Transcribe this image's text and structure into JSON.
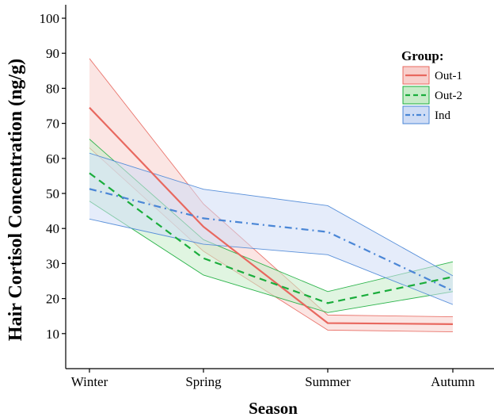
{
  "chart_data": {
    "type": "line",
    "title": "",
    "xlabel": "Season",
    "ylabel": "Hair Cortisol Concentration (ng/g)",
    "categories": [
      "Winter",
      "Spring",
      "Summer",
      "Autumn"
    ],
    "ylim": [
      0,
      100
    ],
    "yticks": [
      10,
      20,
      30,
      40,
      50,
      60,
      70,
      80,
      90,
      100
    ],
    "grid": false,
    "legend": {
      "title": "Group:",
      "position": "top-right"
    },
    "series": [
      {
        "name": "Out-1",
        "color": "#e8685f",
        "fill": "#f8cfcc",
        "dash": "solid",
        "values": [
          74.5,
          40.5,
          13.0,
          12.7
        ],
        "lower": [
          63.0,
          33.5,
          11.0,
          10.5
        ],
        "upper": [
          88.5,
          47.0,
          15.3,
          14.8
        ]
      },
      {
        "name": "Out-2",
        "color": "#1aad3c",
        "fill": "#c7ecc8",
        "dash": "dashed",
        "values": [
          55.8,
          31.5,
          18.7,
          26.2
        ],
        "lower": [
          47.8,
          26.7,
          16.0,
          22.0
        ],
        "upper": [
          65.5,
          36.8,
          22.0,
          30.5
        ]
      },
      {
        "name": "Ind",
        "color": "#4a86d6",
        "fill": "#cfdcf5",
        "dash": "dashdot",
        "values": [
          51.3,
          42.9,
          39.0,
          22.2
        ],
        "lower": [
          42.7,
          35.5,
          32.5,
          18.3
        ],
        "upper": [
          61.5,
          51.2,
          46.5,
          26.5
        ]
      }
    ]
  }
}
